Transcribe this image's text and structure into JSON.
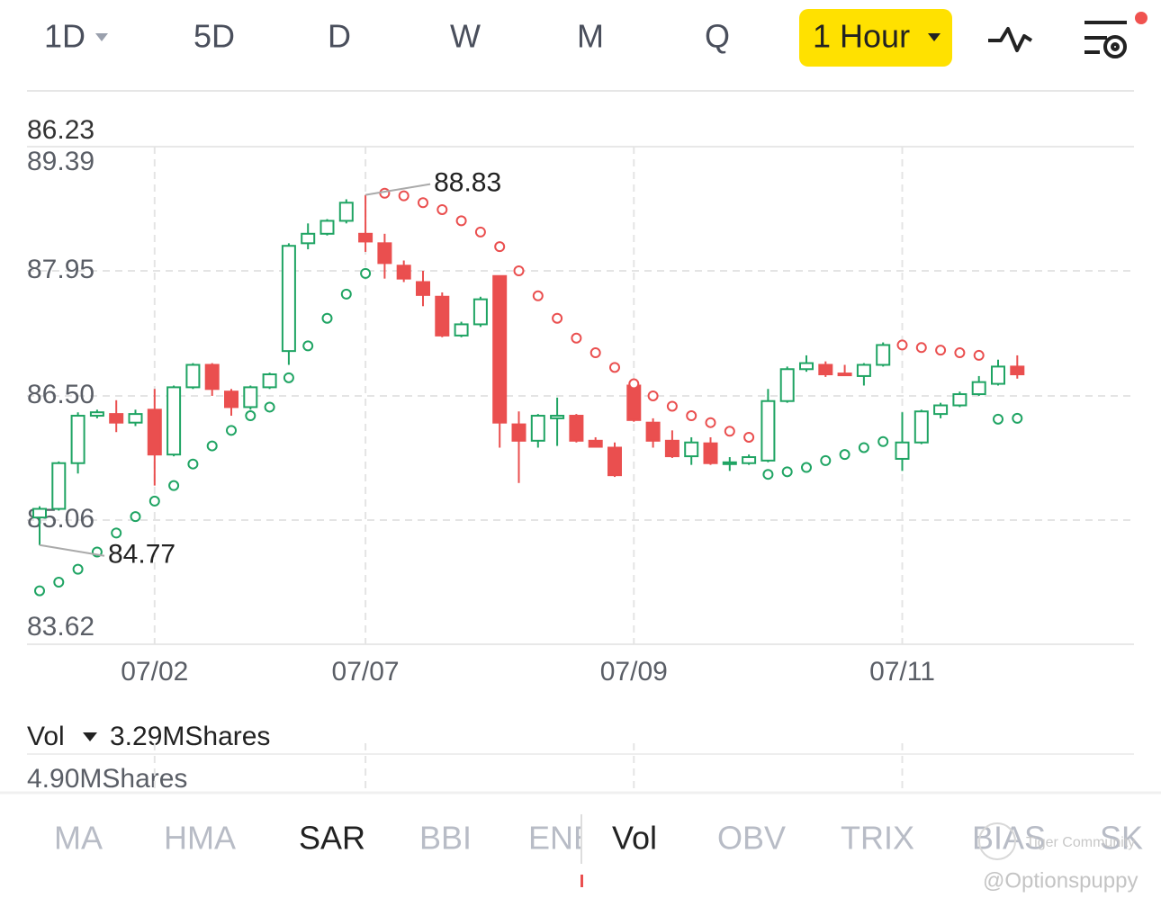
{
  "toolbar": {
    "periods": [
      "1D",
      "5D",
      "D",
      "W",
      "M",
      "Q"
    ],
    "selected": "1 Hour"
  },
  "chart_data": {
    "type": "candlestick",
    "price_label": 86.23,
    "ylim": [
      83.62,
      89.39
    ],
    "yticks": [
      89.39,
      87.95,
      {
        "value": 86.5,
        "label": "86.50"
      },
      85.06,
      83.62
    ],
    "grid": true,
    "up_color": "#1fa463",
    "down_color": "#ea4f4f",
    "categories": [
      null,
      null,
      null,
      null,
      null,
      null,
      "07/02",
      null,
      null,
      null,
      null,
      null,
      null,
      null,
      null,
      null,
      null,
      "07/07",
      null,
      null,
      null,
      null,
      null,
      null,
      null,
      null,
      null,
      null,
      null,
      null,
      null,
      "07/09",
      null,
      null,
      null,
      null,
      null,
      null,
      null,
      null,
      null,
      null,
      null,
      null,
      null,
      "07/11",
      null,
      null,
      null,
      null,
      null,
      null
    ],
    "ohlc": [
      [
        85.09,
        85.22,
        84.77,
        85.19
      ],
      [
        85.19,
        85.74,
        85.17,
        85.72
      ],
      [
        85.72,
        86.31,
        85.6,
        86.27
      ],
      [
        86.27,
        86.34,
        86.24,
        86.31
      ],
      [
        86.29,
        86.45,
        86.08,
        86.19
      ],
      [
        86.19,
        86.34,
        86.15,
        86.29
      ],
      [
        86.34,
        86.58,
        85.46,
        85.82
      ],
      [
        85.82,
        86.62,
        85.8,
        86.6
      ],
      [
        86.6,
        86.88,
        86.58,
        86.86
      ],
      [
        86.86,
        86.88,
        86.5,
        86.58
      ],
      [
        86.55,
        86.58,
        86.27,
        86.37
      ],
      [
        86.37,
        86.62,
        86.34,
        86.6
      ],
      [
        86.6,
        86.77,
        86.58,
        86.75
      ],
      [
        87.02,
        88.27,
        86.86,
        88.24
      ],
      [
        88.27,
        88.5,
        88.2,
        88.38
      ],
      [
        88.38,
        88.55,
        88.36,
        88.53
      ],
      [
        88.53,
        88.78,
        88.5,
        88.74
      ],
      [
        88.38,
        88.83,
        88.17,
        88.29
      ],
      [
        88.27,
        88.38,
        87.86,
        88.04
      ],
      [
        88.01,
        88.07,
        87.82,
        87.86
      ],
      [
        87.82,
        87.95,
        87.54,
        87.67
      ],
      [
        87.65,
        87.7,
        87.18,
        87.2
      ],
      [
        87.2,
        87.36,
        87.18,
        87.33
      ],
      [
        87.33,
        87.65,
        87.3,
        87.62
      ],
      [
        87.89,
        87.89,
        85.9,
        86.19
      ],
      [
        86.17,
        86.32,
        85.49,
        85.98
      ],
      [
        85.98,
        86.29,
        85.9,
        86.27
      ],
      [
        86.24,
        86.48,
        85.92,
        86.27
      ],
      [
        86.27,
        86.29,
        85.96,
        85.98
      ],
      [
        85.98,
        86.02,
        85.9,
        85.91
      ],
      [
        85.9,
        85.96,
        85.56,
        85.58
      ],
      [
        86.62,
        86.66,
        86.2,
        86.22
      ],
      [
        86.19,
        86.24,
        85.9,
        85.98
      ],
      [
        85.98,
        86.1,
        85.78,
        85.8
      ],
      [
        85.8,
        86.02,
        85.7,
        85.96
      ],
      [
        85.95,
        86.02,
        85.7,
        85.72
      ],
      [
        85.71,
        85.79,
        85.63,
        85.73
      ],
      [
        85.72,
        85.82,
        85.7,
        85.79
      ],
      [
        85.75,
        86.58,
        85.73,
        86.44
      ],
      [
        86.44,
        86.84,
        86.42,
        86.81
      ],
      [
        86.81,
        86.97,
        86.78,
        86.88
      ],
      [
        86.86,
        86.9,
        86.72,
        86.75
      ],
      [
        86.76,
        86.86,
        86.74,
        86.75
      ],
      [
        86.73,
        86.88,
        86.62,
        86.86
      ],
      [
        86.86,
        87.12,
        86.84,
        87.09
      ],
      [
        85.77,
        86.31,
        85.63,
        85.96
      ],
      [
        85.96,
        86.34,
        85.94,
        86.32
      ],
      [
        86.29,
        86.42,
        86.24,
        86.39
      ],
      [
        86.39,
        86.55,
        86.37,
        86.52
      ],
      [
        86.52,
        86.73,
        86.5,
        86.66
      ],
      [
        86.64,
        86.92,
        86.62,
        86.84
      ],
      [
        86.84,
        86.97,
        86.7,
        86.75
      ]
    ],
    "sar": [
      84.24,
      84.34,
      84.49,
      84.69,
      84.91,
      85.1,
      85.28,
      85.46,
      85.71,
      85.92,
      86.1,
      86.27,
      86.37,
      86.71,
      87.08,
      87.4,
      87.68,
      87.92,
      88.85,
      88.82,
      88.74,
      88.66,
      88.53,
      88.4,
      88.23,
      87.95,
      87.66,
      87.4,
      87.17,
      87.0,
      86.83,
      86.64,
      86.5,
      86.38,
      86.27,
      86.19,
      86.09,
      86.02,
      85.59,
      85.62,
      85.67,
      85.75,
      85.82,
      85.9,
      85.97,
      87.09,
      87.06,
      87.03,
      87.0,
      86.97,
      86.23,
      86.24
    ],
    "high_marker": 88.83,
    "low_marker": 84.77
  },
  "volume": {
    "label": "Vol",
    "current": "3.29MShares",
    "max": "4.90MShares"
  },
  "indicator_tabs": [
    {
      "label": "MA",
      "active": false
    },
    {
      "label": "HMA",
      "active": false
    },
    {
      "label": "SAR",
      "active": true
    },
    {
      "label": "BBI",
      "active": false
    },
    {
      "label": "ENE",
      "active": false
    },
    {
      "label": "Vol",
      "active": true
    },
    {
      "label": "OBV",
      "active": false
    },
    {
      "label": "TRIX",
      "active": false
    },
    {
      "label": "BIAS",
      "active": false
    },
    {
      "label": "SK",
      "active": false
    }
  ],
  "watermark": {
    "brand": "Tiger Community",
    "user": "@Optionspuppy"
  }
}
